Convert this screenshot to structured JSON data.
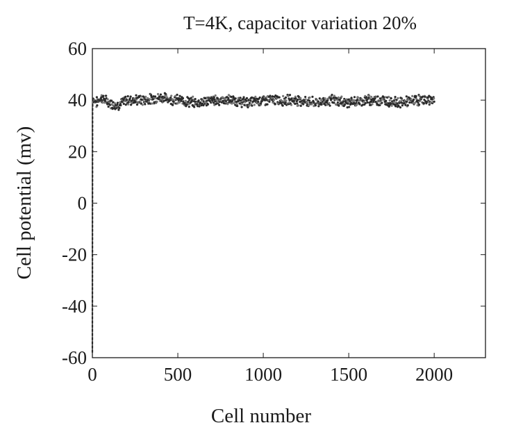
{
  "chart_data": {
    "type": "scatter",
    "title": "T=4K, capacitor variation 20%",
    "xlabel": "Cell number",
    "ylabel": "Cell potential (mv)",
    "xlim": [
      0,
      2300
    ],
    "ylim": [
      -60,
      60
    ],
    "xticks": [
      "0",
      "500",
      "1000",
      "1500",
      "2000"
    ],
    "yticks": [
      "-60",
      "-40",
      "-20",
      "0",
      "20",
      "40",
      "60"
    ],
    "grid": false,
    "series": [
      {
        "color": "#2a2a2a",
        "description_points": "dense noisy band of ~2000 cell potentials around 40 mV; first cell near -58 mV",
        "x": [
          0,
          1,
          2,
          3,
          5,
          10,
          25,
          50,
          100,
          150,
          200,
          300,
          400,
          500,
          600,
          700,
          800,
          900,
          1000,
          1100,
          1200,
          1300,
          1400,
          1500,
          1600,
          1700,
          1800,
          1900,
          2000
        ],
        "y": [
          -58,
          36,
          39,
          40,
          41,
          40,
          39,
          41,
          39,
          38,
          40,
          40,
          41,
          40,
          39,
          40,
          40,
          39,
          40,
          40,
          40,
          39,
          40,
          39,
          40,
          40,
          39,
          40,
          40
        ]
      }
    ]
  }
}
